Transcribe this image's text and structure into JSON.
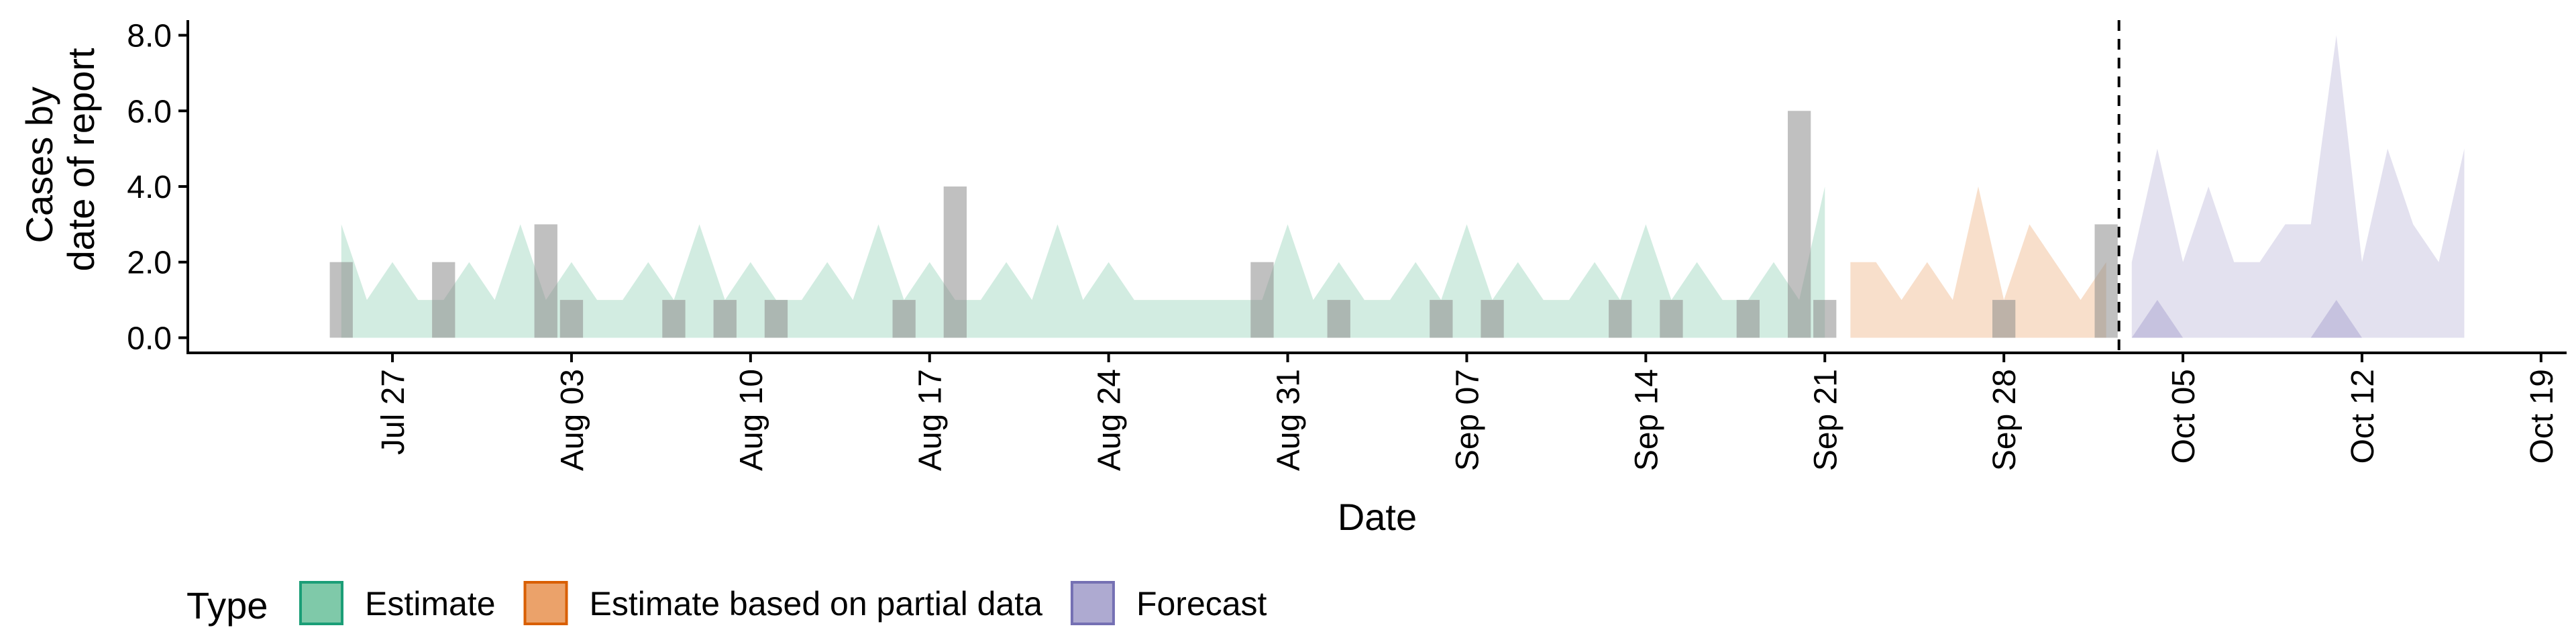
{
  "chart_data": {
    "type": "area",
    "title": "",
    "xlabel": "Date",
    "ylabel_lines": [
      "Cases by",
      "date of report"
    ],
    "x_range": [
      "2020-07-19",
      "2020-10-20"
    ],
    "ylim": [
      -0.4,
      8.4
    ],
    "y_ticks": [
      0,
      2,
      4,
      6,
      8
    ],
    "y_tick_labels": [
      "0.0",
      "2.0",
      "4.0",
      "6.0",
      "8.0"
    ],
    "x_ticks": [
      "2020-07-27",
      "2020-08-03",
      "2020-08-10",
      "2020-08-17",
      "2020-08-24",
      "2020-08-31",
      "2020-09-07",
      "2020-09-14",
      "2020-09-21",
      "2020-09-28",
      "2020-10-05",
      "2020-10-12",
      "2020-10-19"
    ],
    "x_tick_labels": [
      "Jul 27",
      "Aug 03",
      "Aug 10",
      "Aug 17",
      "Aug 24",
      "Aug 31",
      "Sep 07",
      "Sep 14",
      "Sep 21",
      "Sep 28",
      "Oct 05",
      "Oct 12",
      "Oct 19"
    ],
    "grid": false,
    "forecast_date": "2020-10-02",
    "legend": {
      "title": "Type",
      "position": "bottom",
      "entries": [
        {
          "label": "Estimate",
          "fill": "#7fc9a9",
          "stroke": "#1b9e77"
        },
        {
          "label": "Estimate based on partial data",
          "fill": "#eba26a",
          "stroke": "#d95f02"
        },
        {
          "label": "Forecast",
          "fill": "#aeaad1",
          "stroke": "#7570b3"
        }
      ]
    },
    "reported_cases": {
      "dates": [
        "2020-07-25",
        "2020-07-29",
        "2020-08-02",
        "2020-08-03",
        "2020-08-07",
        "2020-08-09",
        "2020-08-11",
        "2020-08-16",
        "2020-08-18",
        "2020-08-30",
        "2020-09-02",
        "2020-09-06",
        "2020-09-08",
        "2020-09-13",
        "2020-09-15",
        "2020-09-18",
        "2020-09-20",
        "2020-09-21",
        "2020-09-28",
        "2020-10-02"
      ],
      "values": [
        2,
        2,
        3,
        1,
        1,
        1,
        1,
        1,
        4,
        2,
        1,
        1,
        1,
        1,
        1,
        1,
        6,
        1,
        1,
        3
      ],
      "color": "#8c8c8c"
    },
    "series": [
      {
        "name": "Estimate",
        "color": "#1b9e77",
        "upper": {
          "dates": [
            "2020-07-25",
            "2020-07-26",
            "2020-07-27",
            "2020-07-28",
            "2020-07-29",
            "2020-07-30",
            "2020-07-31",
            "2020-08-01",
            "2020-08-02",
            "2020-08-03",
            "2020-08-04",
            "2020-08-05",
            "2020-08-06",
            "2020-08-07",
            "2020-08-08",
            "2020-08-09",
            "2020-08-10",
            "2020-08-11",
            "2020-08-12",
            "2020-08-13",
            "2020-08-14",
            "2020-08-15",
            "2020-08-16",
            "2020-08-17",
            "2020-08-18",
            "2020-08-19",
            "2020-08-20",
            "2020-08-21",
            "2020-08-22",
            "2020-08-23",
            "2020-08-24",
            "2020-08-25",
            "2020-08-26",
            "2020-08-27",
            "2020-08-28",
            "2020-08-29",
            "2020-08-30",
            "2020-08-31",
            "2020-09-01",
            "2020-09-02",
            "2020-09-03",
            "2020-09-04",
            "2020-09-05",
            "2020-09-06",
            "2020-09-07",
            "2020-09-08",
            "2020-09-09",
            "2020-09-10",
            "2020-09-11",
            "2020-09-12",
            "2020-09-13",
            "2020-09-14",
            "2020-09-15",
            "2020-09-16",
            "2020-09-17",
            "2020-09-18",
            "2020-09-19",
            "2020-09-20",
            "2020-09-21"
          ],
          "values": [
            3,
            1,
            2,
            1,
            1,
            2,
            1,
            3,
            1,
            2,
            1,
            1,
            2,
            1,
            3,
            1,
            2,
            1,
            1,
            2,
            1,
            3,
            1,
            2,
            1,
            1,
            2,
            1,
            3,
            1,
            2,
            1,
            1,
            1,
            1,
            1,
            1,
            3,
            1,
            2,
            1,
            1,
            2,
            1,
            3,
            1,
            2,
            1,
            1,
            2,
            1,
            3,
            1,
            2,
            1,
            1,
            2,
            1,
            4
          ]
        },
        "lower": 0
      },
      {
        "name": "Estimate based on partial data",
        "color": "#d95f02",
        "upper": {
          "dates": [
            "2020-09-22",
            "2020-09-23",
            "2020-09-24",
            "2020-09-25",
            "2020-09-26",
            "2020-09-27",
            "2020-09-28",
            "2020-09-29",
            "2020-09-30",
            "2020-10-01",
            "2020-10-02"
          ],
          "values": [
            2,
            2,
            1,
            2,
            1,
            4,
            1,
            3,
            2,
            1,
            2
          ]
        },
        "lower": 0
      },
      {
        "name": "Forecast",
        "color": "#7570b3",
        "upper": {
          "dates": [
            "2020-10-03",
            "2020-10-04",
            "2020-10-05",
            "2020-10-06",
            "2020-10-07",
            "2020-10-08",
            "2020-10-09",
            "2020-10-10",
            "2020-10-11",
            "2020-10-12",
            "2020-10-13",
            "2020-10-14",
            "2020-10-15",
            "2020-10-16"
          ],
          "values": [
            2,
            5,
            2,
            4,
            2,
            2,
            3,
            3,
            8,
            2,
            5,
            3,
            2,
            5
          ]
        },
        "inner": {
          "dates": [
            "2020-10-03",
            "2020-10-04",
            "2020-10-05",
            "2020-10-06",
            "2020-10-07",
            "2020-10-08",
            "2020-10-09",
            "2020-10-10",
            "2020-10-11",
            "2020-10-12",
            "2020-10-13",
            "2020-10-14",
            "2020-10-15",
            "2020-10-16"
          ],
          "values": [
            0,
            1,
            0,
            0,
            0,
            0,
            0,
            0,
            1,
            0,
            0,
            0,
            0,
            0
          ]
        },
        "lower": 0
      }
    ]
  }
}
